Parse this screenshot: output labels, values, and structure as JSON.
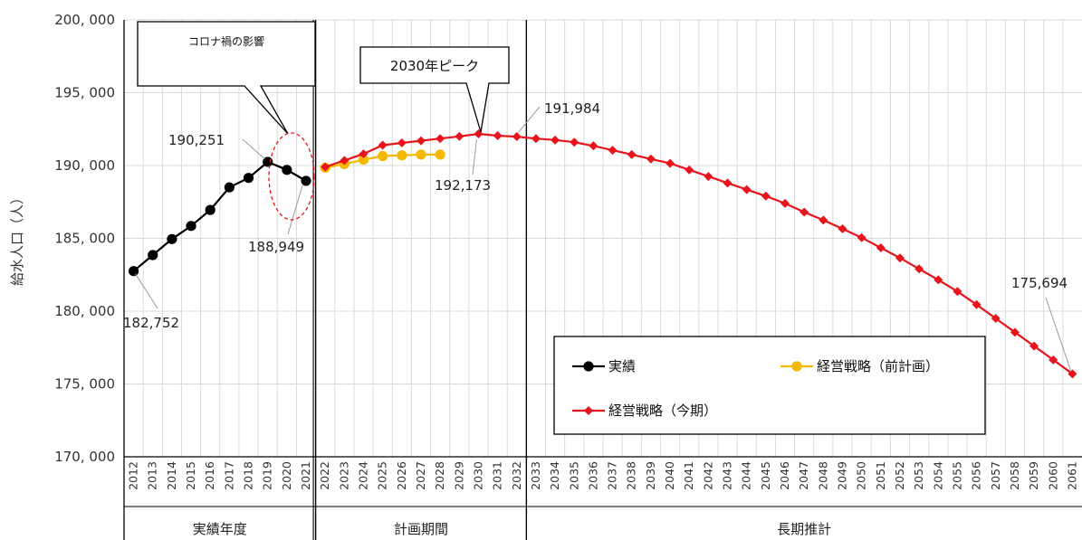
{
  "chart_data": {
    "type": "line",
    "xlabel": "",
    "ylabel": "給水人口（人）",
    "ylim": [
      170000,
      200000
    ],
    "yticks": [
      170000,
      175000,
      180000,
      185000,
      190000,
      195000,
      200000
    ],
    "ytick_labels": [
      "170, 000",
      "175, 000",
      "180, 000",
      "185, 000",
      "190, 000",
      "195, 000",
      "200, 000"
    ],
    "x_years": [
      2012,
      2013,
      2014,
      2015,
      2016,
      2017,
      2018,
      2019,
      2020,
      2021,
      2022,
      2023,
      2024,
      2025,
      2026,
      2027,
      2028,
      2029,
      2030,
      2031,
      2032,
      2033,
      2034,
      2035,
      2036,
      2037,
      2038,
      2039,
      2040,
      2041,
      2042,
      2043,
      2044,
      2045,
      2046,
      2047,
      2048,
      2049,
      2050,
      2051,
      2052,
      2053,
      2054,
      2055,
      2056,
      2057,
      2058,
      2059,
      2060,
      2061
    ],
    "grid": true,
    "periods": [
      {
        "label": "実績年度",
        "start": 2012,
        "end": 2021
      },
      {
        "label": "計画期間",
        "start": 2022,
        "end": 2032
      },
      {
        "label": "長期推計",
        "start": 2033,
        "end": 2061
      }
    ],
    "series": [
      {
        "name": "実績",
        "color": "#000000",
        "marker": "circle",
        "x": [
          2012,
          2013,
          2014,
          2015,
          2016,
          2017,
          2018,
          2019,
          2020,
          2021
        ],
        "values": [
          182752,
          183850,
          184950,
          185850,
          186950,
          188500,
          189150,
          190251,
          189700,
          188949
        ]
      },
      {
        "name": "経営戦略（前計画）",
        "color": "#f5b800",
        "marker": "circle",
        "x": [
          2022,
          2023,
          2024,
          2025,
          2026,
          2027,
          2028
        ],
        "values": [
          189850,
          190100,
          190400,
          190650,
          190700,
          190750,
          190750
        ]
      },
      {
        "name": "経営戦略（今期）",
        "color": "#e8141b",
        "marker": "diamond",
        "x": [
          2022,
          2023,
          2024,
          2025,
          2026,
          2027,
          2028,
          2029,
          2030,
          2031,
          2032,
          2033,
          2034,
          2035,
          2036,
          2037,
          2038,
          2039,
          2040,
          2041,
          2042,
          2043,
          2044,
          2045,
          2046,
          2047,
          2048,
          2049,
          2050,
          2051,
          2052,
          2053,
          2054,
          2055,
          2056,
          2057,
          2058,
          2059,
          2060,
          2061
        ],
        "values": [
          189900,
          190350,
          190800,
          191400,
          191550,
          191700,
          191850,
          192000,
          192173,
          192050,
          191984,
          191850,
          191750,
          191600,
          191350,
          191050,
          190750,
          190450,
          190150,
          189700,
          189250,
          188800,
          188350,
          187900,
          187400,
          186800,
          186250,
          185650,
          185050,
          184350,
          183650,
          182900,
          182150,
          181350,
          180450,
          179500,
          178550,
          177600,
          176650,
          175694
        ]
      }
    ],
    "data_labels": [
      {
        "text": "182,752",
        "x": 2012,
        "y": 182752
      },
      {
        "text": "190,251",
        "x": 2019,
        "y": 190251
      },
      {
        "text": "188,949",
        "x": 2021,
        "y": 188949
      },
      {
        "text": "192,173",
        "x": 2030,
        "y": 192173
      },
      {
        "text": "191,984",
        "x": 2032,
        "y": 191984
      },
      {
        "text": "175,694",
        "x": 2061,
        "y": 175694
      }
    ],
    "annotations": [
      {
        "text": "コロナ禍の影響"
      },
      {
        "text": "2030年ピーク"
      }
    ],
    "legend": {
      "placement": "bottom-right",
      "items": [
        "実績",
        "経営戦略（前計画）",
        "経営戦略（今期）"
      ]
    }
  }
}
